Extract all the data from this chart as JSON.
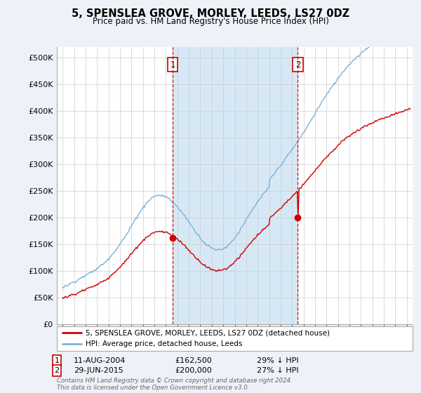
{
  "title": "5, SPENSLEA GROVE, MORLEY, LEEDS, LS27 0DZ",
  "subtitle": "Price paid vs. HM Land Registry's House Price Index (HPI)",
  "ytick_values": [
    0,
    50000,
    100000,
    150000,
    200000,
    250000,
    300000,
    350000,
    400000,
    450000,
    500000
  ],
  "ylim": [
    0,
    520000
  ],
  "xlim_start": 1994.5,
  "xlim_end": 2025.5,
  "hpi_color": "#7ab4d8",
  "price_color": "#cc0000",
  "shade_color": "#d6e8f5",
  "marker1_date": 2004.6,
  "marker1_price": 162500,
  "marker2_date": 2015.5,
  "marker2_price": 200000,
  "legend_label_price": "5, SPENSLEA GROVE, MORLEY, LEEDS, LS27 0DZ (detached house)",
  "legend_label_hpi": "HPI: Average price, detached house, Leeds",
  "note1_num": "1",
  "note1_date": "11-AUG-2004",
  "note1_price": "£162,500",
  "note1_pct": "29% ↓ HPI",
  "note2_num": "2",
  "note2_date": "29-JUN-2015",
  "note2_price": "£200,000",
  "note2_pct": "27% ↓ HPI",
  "footer": "Contains HM Land Registry data © Crown copyright and database right 2024.\nThis data is licensed under the Open Government Licence v3.0.",
  "bg_color": "#eef2f8",
  "plot_bg_color": "#ffffff",
  "grid_color": "#cccccc",
  "legend_bg": "#ffffff",
  "legend_border": "#aaaaaa"
}
